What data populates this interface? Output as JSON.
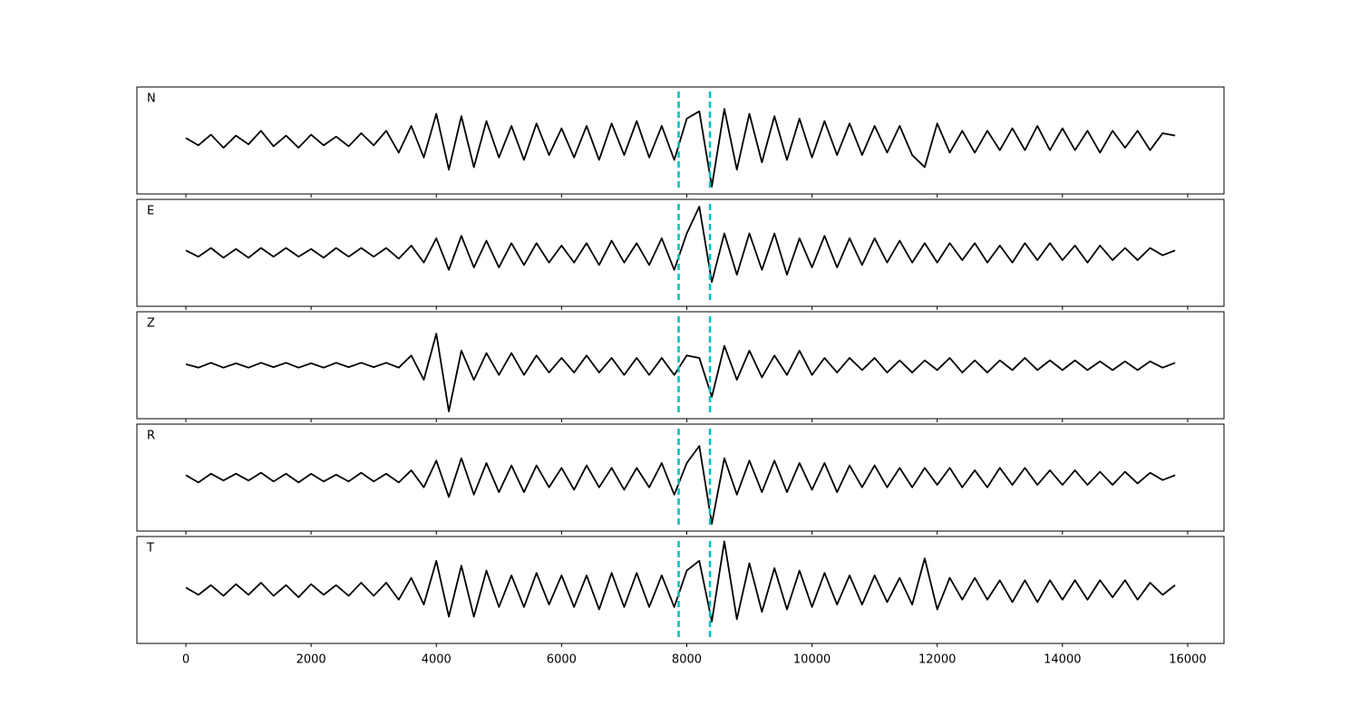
{
  "chart_data": {
    "type": "line",
    "x": [
      0,
      200,
      400,
      600,
      800,
      1000,
      1200,
      1400,
      1600,
      1800,
      2000,
      2200,
      2400,
      2600,
      2800,
      3000,
      3200,
      3400,
      3600,
      3800,
      4000,
      4200,
      4400,
      4600,
      4800,
      5000,
      5200,
      5400,
      5600,
      5800,
      6000,
      6200,
      6400,
      6600,
      6800,
      7000,
      7200,
      7400,
      7600,
      7800,
      8000,
      8200,
      8400,
      8600,
      8800,
      9000,
      9200,
      9400,
      9600,
      9800,
      10000,
      10200,
      10400,
      10600,
      10800,
      11000,
      11200,
      11400,
      11600,
      11800,
      12000,
      12200,
      12400,
      12600,
      12800,
      13000,
      13200,
      13400,
      13600,
      13800,
      14000,
      14200,
      14400,
      14600,
      14800,
      15000,
      15200,
      15400,
      15600,
      15800
    ],
    "xlim": [
      -782,
      16580
    ],
    "xticks": [
      0,
      2000,
      4000,
      6000,
      8000,
      10000,
      12000,
      14000,
      16000
    ],
    "ylim": [
      -1.1,
      1.1
    ],
    "vlines": [
      7870,
      8370
    ],
    "vline_color": "#00bfbf",
    "series": [
      {
        "name": "N",
        "color": "#000000",
        "values": [
          0.05,
          -0.1,
          0.12,
          -0.15,
          0.1,
          -0.08,
          0.2,
          -0.12,
          0.1,
          -0.15,
          0.12,
          -0.1,
          0.08,
          -0.12,
          0.15,
          -0.1,
          0.2,
          -0.25,
          0.3,
          -0.35,
          0.55,
          -0.6,
          0.5,
          -0.55,
          0.4,
          -0.35,
          0.3,
          -0.4,
          0.35,
          -0.3,
          0.25,
          -0.35,
          0.3,
          -0.4,
          0.35,
          -0.3,
          0.4,
          -0.35,
          0.3,
          -0.4,
          0.45,
          0.6,
          -0.95,
          0.65,
          -0.6,
          0.55,
          -0.45,
          0.5,
          -0.4,
          0.45,
          -0.35,
          0.4,
          -0.3,
          0.35,
          -0.3,
          0.3,
          -0.25,
          0.3,
          -0.3,
          -0.55,
          0.35,
          -0.25,
          0.2,
          -0.25,
          0.2,
          -0.2,
          0.25,
          -0.2,
          0.3,
          -0.2,
          0.25,
          -0.2,
          0.2,
          -0.25,
          0.2,
          -0.15,
          0.2,
          -0.2,
          0.15,
          0.1
        ]
      },
      {
        "name": "E",
        "color": "#000000",
        "values": [
          0.05,
          -0.08,
          0.1,
          -0.1,
          0.08,
          -0.1,
          0.1,
          -0.08,
          0.1,
          -0.08,
          0.08,
          -0.1,
          0.1,
          -0.08,
          0.1,
          -0.08,
          0.1,
          -0.12,
          0.15,
          -0.2,
          0.3,
          -0.35,
          0.35,
          -0.3,
          0.25,
          -0.3,
          0.2,
          -0.25,
          0.2,
          -0.2,
          0.15,
          -0.2,
          0.2,
          -0.25,
          0.25,
          -0.2,
          0.2,
          -0.25,
          0.3,
          -0.35,
          0.4,
          0.95,
          -0.6,
          0.4,
          -0.45,
          0.4,
          -0.35,
          0.4,
          -0.45,
          0.3,
          -0.3,
          0.35,
          -0.3,
          0.3,
          -0.25,
          0.3,
          -0.2,
          0.25,
          -0.2,
          0.2,
          -0.2,
          0.2,
          -0.15,
          0.2,
          -0.2,
          0.15,
          -0.2,
          0.2,
          -0.15,
          0.2,
          -0.15,
          0.15,
          -0.2,
          0.15,
          -0.15,
          0.1,
          -0.15,
          0.1,
          -0.05,
          0.05
        ]
      },
      {
        "name": "Z",
        "color": "#000000",
        "values": [
          0.02,
          -0.05,
          0.05,
          -0.05,
          0.04,
          -0.05,
          0.05,
          -0.04,
          0.05,
          -0.05,
          0.04,
          -0.05,
          0.05,
          -0.04,
          0.05,
          -0.04,
          0.05,
          -0.05,
          0.2,
          -0.3,
          0.65,
          -0.95,
          0.3,
          -0.3,
          0.25,
          -0.2,
          0.25,
          -0.2,
          0.2,
          -0.15,
          0.15,
          -0.15,
          0.2,
          -0.15,
          0.15,
          -0.2,
          0.15,
          -0.2,
          0.15,
          -0.2,
          0.2,
          0.15,
          -0.65,
          0.4,
          -0.3,
          0.3,
          -0.25,
          0.2,
          -0.2,
          0.3,
          -0.2,
          0.15,
          -0.15,
          0.15,
          -0.1,
          0.15,
          -0.15,
          0.1,
          -0.15,
          0.1,
          -0.1,
          0.15,
          -0.15,
          0.1,
          -0.15,
          0.1,
          -0.1,
          0.15,
          -0.1,
          0.1,
          -0.1,
          0.1,
          -0.1,
          0.08,
          -0.1,
          0.08,
          -0.1,
          0.08,
          -0.05,
          0.05
        ]
      },
      {
        "name": "R",
        "color": "#000000",
        "values": [
          0.05,
          -0.1,
          0.08,
          -0.06,
          0.08,
          -0.06,
          0.1,
          -0.08,
          0.08,
          -0.1,
          0.08,
          -0.08,
          0.06,
          -0.08,
          0.1,
          -0.08,
          0.08,
          -0.1,
          0.15,
          -0.2,
          0.35,
          -0.4,
          0.4,
          -0.35,
          0.3,
          -0.3,
          0.25,
          -0.3,
          0.25,
          -0.2,
          0.2,
          -0.25,
          0.25,
          -0.2,
          0.2,
          -0.25,
          0.2,
          -0.2,
          0.3,
          -0.35,
          0.3,
          0.65,
          -0.95,
          0.4,
          -0.35,
          0.35,
          -0.3,
          0.35,
          -0.3,
          0.3,
          -0.25,
          0.3,
          -0.3,
          0.25,
          -0.2,
          0.25,
          -0.2,
          0.2,
          -0.2,
          0.2,
          -0.15,
          0.2,
          -0.2,
          0.15,
          -0.2,
          0.2,
          -0.15,
          0.2,
          -0.15,
          0.15,
          -0.15,
          0.15,
          -0.15,
          0.12,
          -0.15,
          0.12,
          -0.12,
          0.1,
          -0.05,
          0.05
        ]
      },
      {
        "name": "T",
        "color": "#000000",
        "values": [
          0.05,
          -0.1,
          0.1,
          -0.12,
          0.12,
          -0.1,
          0.15,
          -0.12,
          0.1,
          -0.15,
          0.12,
          -0.1,
          0.1,
          -0.12,
          0.15,
          -0.12,
          0.15,
          -0.2,
          0.25,
          -0.3,
          0.6,
          -0.55,
          0.5,
          -0.55,
          0.4,
          -0.35,
          0.3,
          -0.35,
          0.35,
          -0.3,
          0.3,
          -0.35,
          0.3,
          -0.4,
          0.35,
          -0.35,
          0.35,
          -0.35,
          0.3,
          -0.35,
          0.4,
          0.6,
          -0.65,
          1.0,
          -0.6,
          0.55,
          -0.45,
          0.45,
          -0.4,
          0.4,
          -0.35,
          0.35,
          -0.3,
          0.3,
          -0.3,
          0.3,
          -0.25,
          0.25,
          -0.3,
          0.65,
          -0.4,
          0.25,
          -0.2,
          0.25,
          -0.2,
          0.2,
          -0.25,
          0.2,
          -0.25,
          0.2,
          -0.2,
          0.2,
          -0.2,
          0.2,
          -0.15,
          0.2,
          -0.2,
          0.15,
          -0.1,
          0.1
        ]
      }
    ]
  }
}
